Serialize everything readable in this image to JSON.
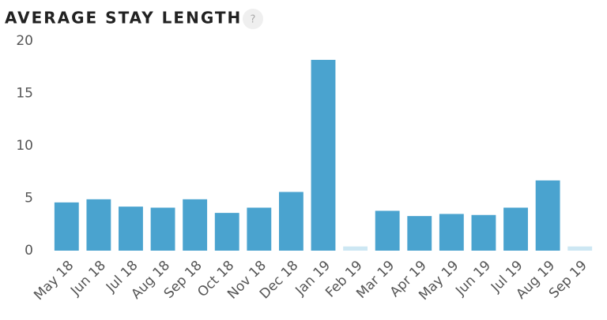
{
  "chart_data": {
    "type": "bar",
    "title": "AVERAGE STAY LENGTH",
    "help_icon": "?",
    "categories": [
      "May 18",
      "Jun 18",
      "Jul 18",
      "Aug 18",
      "Sep 18",
      "Oct 18",
      "Nov 18",
      "Dec 18",
      "Jan 19",
      "Feb 19",
      "Mar 19",
      "Apr 19",
      "May 19",
      "Jun 19",
      "Jul 19",
      "Aug 19",
      "Sep 19"
    ],
    "values": [
      4.6,
      4.9,
      4.2,
      4.1,
      4.9,
      3.6,
      4.1,
      5.6,
      18.2,
      0.4,
      3.8,
      3.3,
      3.5,
      3.4,
      4.1,
      6.7,
      0.4
    ],
    "colors": [
      "#4aa3cf",
      "#4aa3cf",
      "#4aa3cf",
      "#4aa3cf",
      "#4aa3cf",
      "#4aa3cf",
      "#4aa3cf",
      "#4aa3cf",
      "#4aa3cf",
      "#cde7f3",
      "#4aa3cf",
      "#4aa3cf",
      "#4aa3cf",
      "#4aa3cf",
      "#4aa3cf",
      "#4aa3cf",
      "#cde7f3"
    ],
    "ylim": [
      0,
      20
    ],
    "yticks": [
      0,
      5,
      10,
      15,
      20
    ],
    "grid": false
  }
}
